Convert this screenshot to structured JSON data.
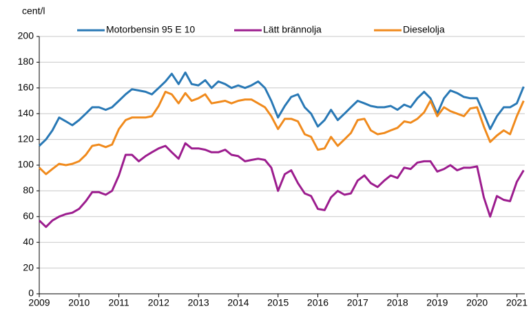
{
  "chart_data": {
    "type": "line",
    "ylabel": "cent/l",
    "x": [
      2009.0,
      2009.17,
      2009.33,
      2009.5,
      2009.67,
      2009.83,
      2010.0,
      2010.17,
      2010.33,
      2010.5,
      2010.67,
      2010.83,
      2011.0,
      2011.17,
      2011.33,
      2011.5,
      2011.67,
      2011.83,
      2012.0,
      2012.17,
      2012.33,
      2012.5,
      2012.67,
      2012.83,
      2013.0,
      2013.17,
      2013.33,
      2013.5,
      2013.67,
      2013.83,
      2014.0,
      2014.17,
      2014.33,
      2014.5,
      2014.67,
      2014.83,
      2015.0,
      2015.17,
      2015.33,
      2015.5,
      2015.67,
      2015.83,
      2016.0,
      2016.17,
      2016.33,
      2016.5,
      2016.67,
      2016.83,
      2017.0,
      2017.17,
      2017.33,
      2017.5,
      2017.67,
      2017.83,
      2018.0,
      2018.17,
      2018.33,
      2018.5,
      2018.67,
      2018.83,
      2019.0,
      2019.17,
      2019.33,
      2019.5,
      2019.67,
      2019.83,
      2020.0,
      2020.17,
      2020.33,
      2020.5,
      2020.67,
      2020.83,
      2021.0,
      2021.17
    ],
    "series": [
      {
        "name": "Motorbensin 95 E 10",
        "color": "#2878b5",
        "values": [
          115,
          120,
          127,
          137,
          134,
          131,
          135,
          140,
          145,
          145,
          143,
          145,
          150,
          155,
          159,
          158,
          157,
          155,
          160,
          165,
          171,
          163,
          172,
          163,
          162,
          166,
          160,
          165,
          163,
          160,
          162,
          160,
          162,
          165,
          160,
          150,
          137,
          146,
          153,
          155,
          145,
          140,
          130,
          135,
          143,
          135,
          140,
          145,
          150,
          148,
          146,
          145,
          145,
          146,
          143,
          147,
          145,
          152,
          157,
          152,
          140,
          152,
          158,
          156,
          153,
          152,
          152,
          140,
          128,
          138,
          145,
          145,
          148,
          161
        ]
      },
      {
        "name": "Lätt brännolja",
        "color": "#9c1c8e",
        "values": [
          57,
          52,
          57,
          60,
          62,
          63,
          66,
          72,
          79,
          79,
          77,
          80,
          92,
          108,
          108,
          103,
          107,
          110,
          113,
          115,
          110,
          105,
          117,
          113,
          113,
          112,
          110,
          110,
          112,
          108,
          107,
          103,
          104,
          105,
          104,
          98,
          80,
          93,
          96,
          86,
          78,
          76,
          66,
          65,
          75,
          80,
          77,
          78,
          88,
          92,
          86,
          83,
          88,
          92,
          90,
          98,
          97,
          102,
          103,
          103,
          95,
          97,
          100,
          96,
          98,
          98,
          99,
          75,
          60,
          76,
          73,
          72,
          87,
          96
        ]
      },
      {
        "name": "Dieselolja",
        "color": "#f08a1c",
        "values": [
          98,
          93,
          97,
          101,
          100,
          101,
          103,
          108,
          115,
          116,
          114,
          116,
          128,
          135,
          137,
          137,
          137,
          138,
          146,
          157,
          155,
          148,
          156,
          150,
          152,
          155,
          148,
          149,
          150,
          148,
          150,
          151,
          151,
          148,
          145,
          138,
          128,
          136,
          136,
          134,
          124,
          122,
          112,
          113,
          122,
          115,
          120,
          125,
          135,
          136,
          127,
          124,
          125,
          127,
          129,
          134,
          133,
          136,
          141,
          150,
          138,
          145,
          142,
          140,
          138,
          144,
          145,
          130,
          118,
          123,
          127,
          124,
          138,
          150
        ]
      }
    ],
    "xlim": [
      2009,
      2021.2
    ],
    "xticks": [
      2009,
      2010,
      2011,
      2012,
      2013,
      2014,
      2015,
      2016,
      2017,
      2018,
      2019,
      2020,
      2021
    ],
    "ylim": [
      0,
      200
    ],
    "yticks": [
      0,
      20,
      40,
      60,
      80,
      100,
      120,
      140,
      160,
      180,
      200
    ],
    "grid": true,
    "legend": "top"
  }
}
